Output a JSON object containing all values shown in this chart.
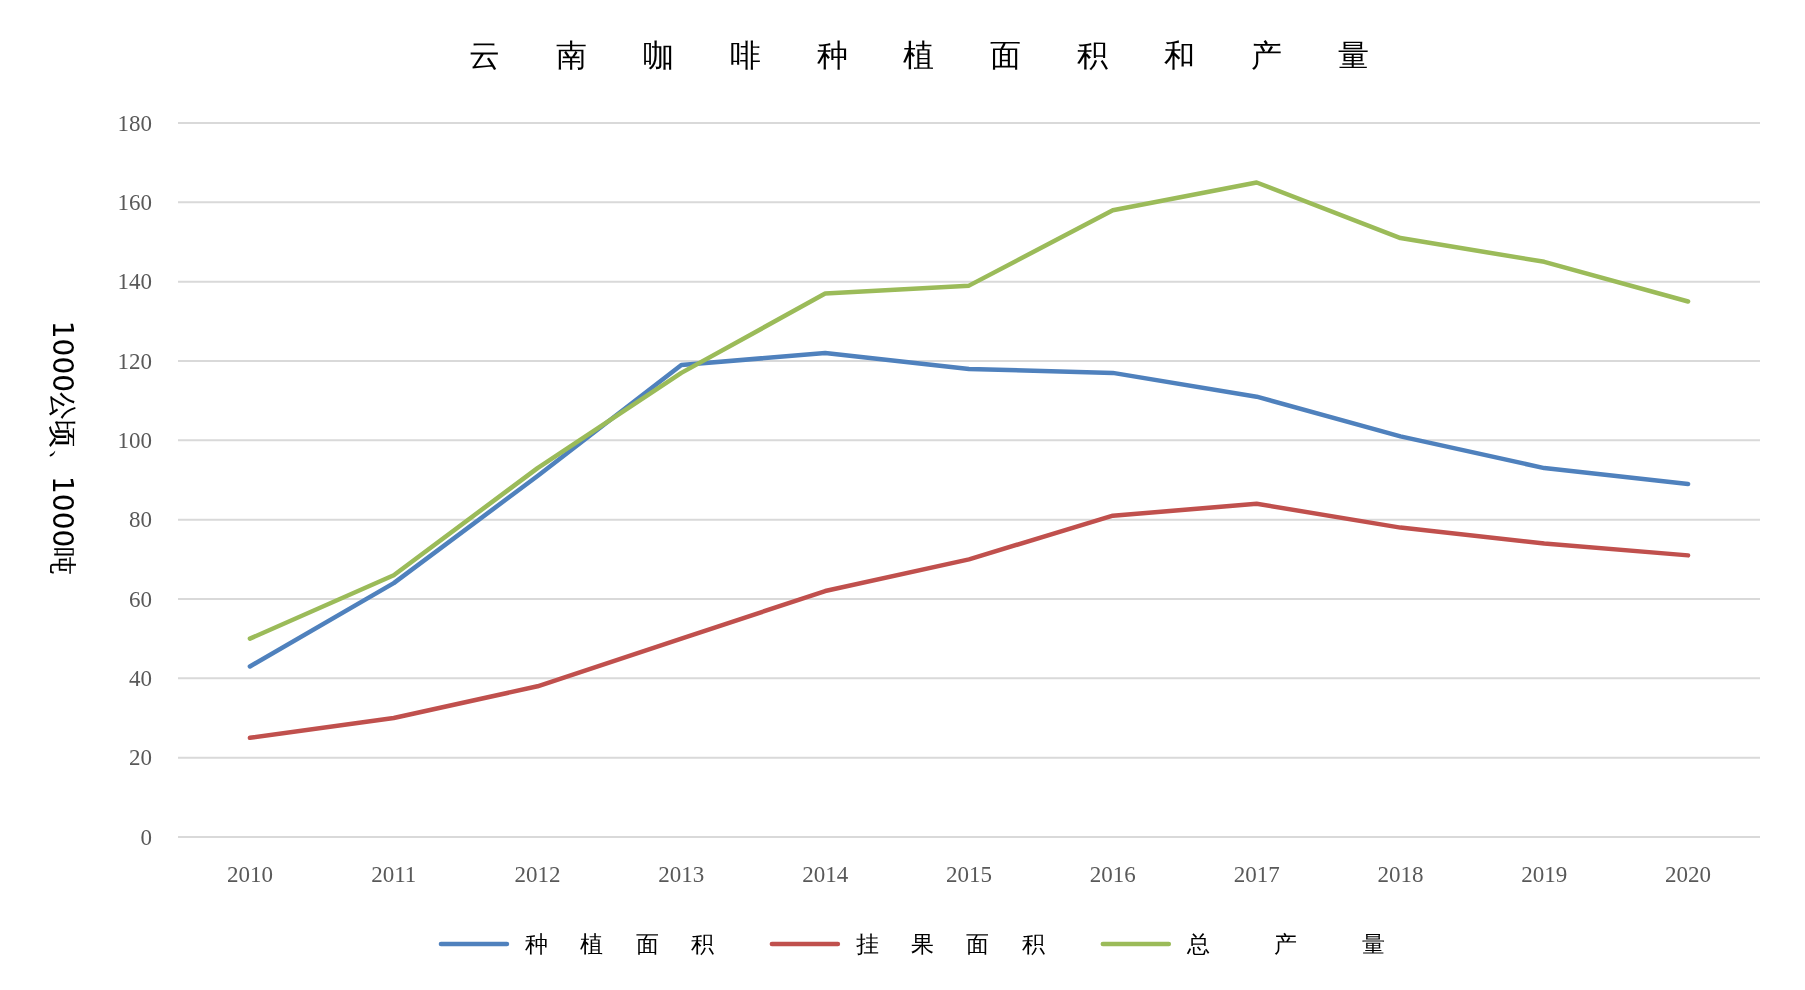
{
  "chart_data": {
    "type": "line",
    "title": "云 南 咖 啡 种 植 面 积 和 产 量",
    "ylabel": "1000公顷、1000吨",
    "categories": [
      "2010",
      "2011",
      "2012",
      "2013",
      "2014",
      "2015",
      "2016",
      "2017",
      "2018",
      "2019",
      "2020"
    ],
    "series": [
      {
        "name": "种 植 面 积",
        "color": "#4f81bd",
        "values": [
          43,
          64,
          91,
          119,
          122,
          118,
          117,
          111,
          101,
          93,
          89
        ]
      },
      {
        "name": "挂 果 面 积",
        "color": "#c0504d",
        "values": [
          25,
          30,
          38,
          50,
          62,
          70,
          81,
          84,
          78,
          74,
          71
        ]
      },
      {
        "name": "总  产  量",
        "color": "#9bbb59",
        "values": [
          50,
          66,
          93,
          117,
          137,
          139,
          158,
          165,
          151,
          145,
          135
        ]
      }
    ],
    "ylim": [
      0,
      180
    ],
    "yticks": [
      0,
      20,
      40,
      60,
      80,
      100,
      120,
      140,
      160,
      180
    ],
    "grid": "y",
    "legend": "bottom"
  }
}
